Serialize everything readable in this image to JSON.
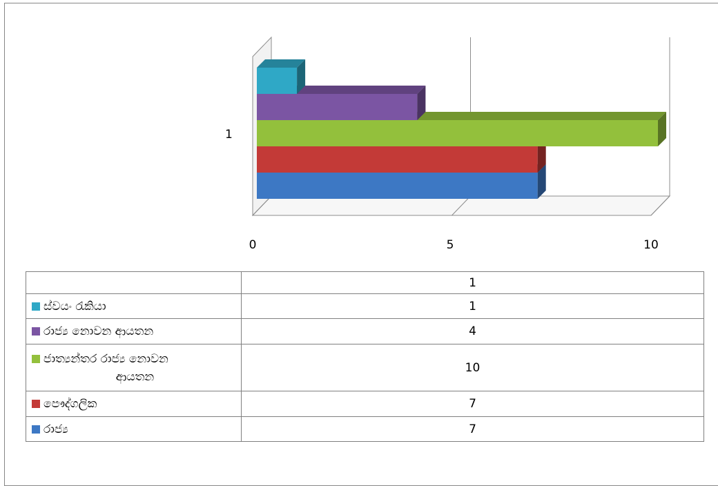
{
  "chart_data": {
    "type": "bar",
    "orientation": "horizontal",
    "three_d": true,
    "categories": [
      "1"
    ],
    "xlim": [
      0,
      10
    ],
    "x_ticks": [
      "0",
      "5",
      "10"
    ],
    "grid": true,
    "series": [
      {
        "name": "රාජ්‍ය",
        "values": [
          7
        ],
        "color": "#3d78c4"
      },
      {
        "name": "පෞද්ගලික",
        "values": [
          7
        ],
        "color": "#c33a37"
      },
      {
        "name": "ජාත්‍යන්තර රාජ්‍ය නොවන ආයතන",
        "values": [
          10
        ],
        "color": "#93c03c"
      },
      {
        "name": "රාජ්‍ය නොවන ආයතන",
        "values": [
          4
        ],
        "color": "#7b55a3"
      },
      {
        "name": "ස්වයං රැකියා",
        "values": [
          1
        ],
        "color": "#2fa8c6"
      }
    ]
  },
  "data_table": {
    "header": "1",
    "rows": [
      {
        "label": "ස්වයං රැකියා",
        "value": "1",
        "color": "#2fa8c6"
      },
      {
        "label": "රාජ්‍ය නොවන ආයතන",
        "value": "4",
        "color": "#7b55a3"
      },
      {
        "label": "ජාත්‍යන්තර රාජ්‍ය නොවන",
        "label2": "ආයතන",
        "value": "10",
        "color": "#93c03c"
      },
      {
        "label": "පෞද්ගලික",
        "value": "7",
        "color": "#c33a37"
      },
      {
        "label": "රාජ්‍ය",
        "value": "7",
        "color": "#3d78c4"
      }
    ]
  }
}
